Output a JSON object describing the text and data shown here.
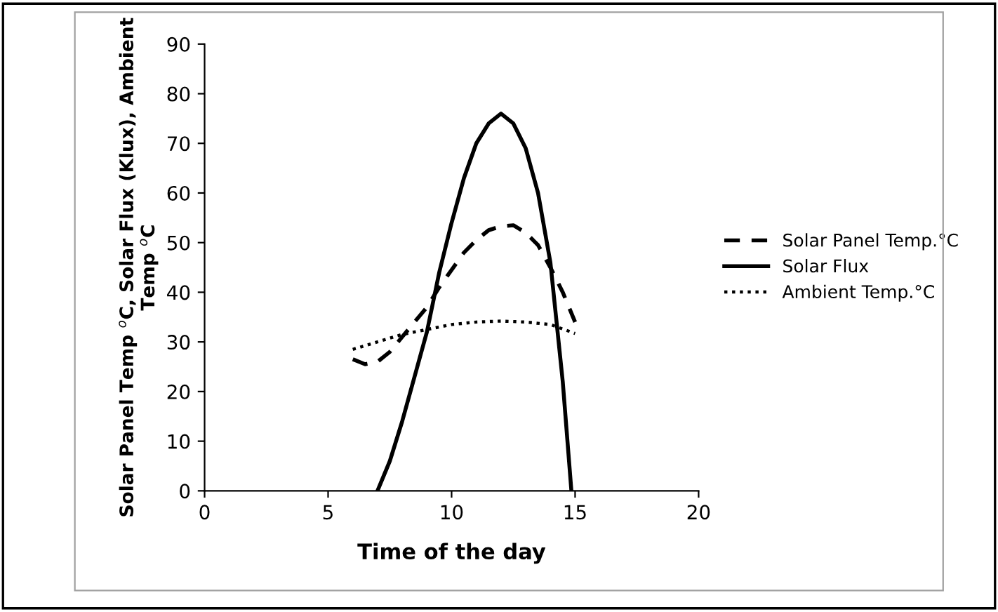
{
  "chart_data": {
    "type": "line",
    "xlabel": "Time of the day",
    "ylabel": "Solar Panel Temp $^{o}$C, Solar Flux (Klux), Ambient Temp $^{o}$C",
    "xlim": [
      0,
      20
    ],
    "xticks": [
      0,
      5,
      10,
      15,
      20
    ],
    "ylim": [
      0,
      90
    ],
    "yticks": [
      0,
      10,
      20,
      30,
      40,
      50,
      60,
      70,
      80,
      90
    ],
    "grid": false,
    "legend": "right",
    "marker": "none",
    "series": [
      {
        "name": "Solar Panel Temp.°C",
        "color": "#000000",
        "line_style": "dashed",
        "x": [
          6,
          6.5,
          7,
          7.5,
          8,
          8.5,
          9,
          9.5,
          10,
          10.5,
          11,
          11.5,
          12,
          12.5,
          13,
          13.5,
          14,
          14.5,
          15
        ],
        "values": [
          26.5,
          25.5,
          26,
          28,
          31,
          34,
          37,
          41,
          44.5,
          48,
          50.5,
          52.5,
          53.3,
          53.5,
          52,
          49.5,
          45,
          40,
          34
        ]
      },
      {
        "name": "Solar Flux",
        "color": "#000000",
        "line_style": "solid",
        "x": [
          7,
          7.5,
          8,
          8.5,
          9,
          9.5,
          10,
          10.5,
          11,
          11.5,
          12,
          12.5,
          13,
          13.5,
          14,
          14.5,
          14.85
        ],
        "values": [
          0,
          6,
          14,
          23,
          32,
          44,
          54,
          63,
          70,
          74,
          76,
          74,
          69,
          60,
          46,
          22,
          0
        ]
      },
      {
        "name": "Ambient Temp.°C",
        "color": "#000000",
        "line_style": "dotted",
        "x": [
          6,
          7,
          8,
          9,
          10,
          11,
          12,
          13,
          14,
          15
        ],
        "values": [
          28.5,
          30,
          31.5,
          32.5,
          33.5,
          34,
          34.2,
          34,
          33.5,
          31.7
        ]
      }
    ]
  }
}
